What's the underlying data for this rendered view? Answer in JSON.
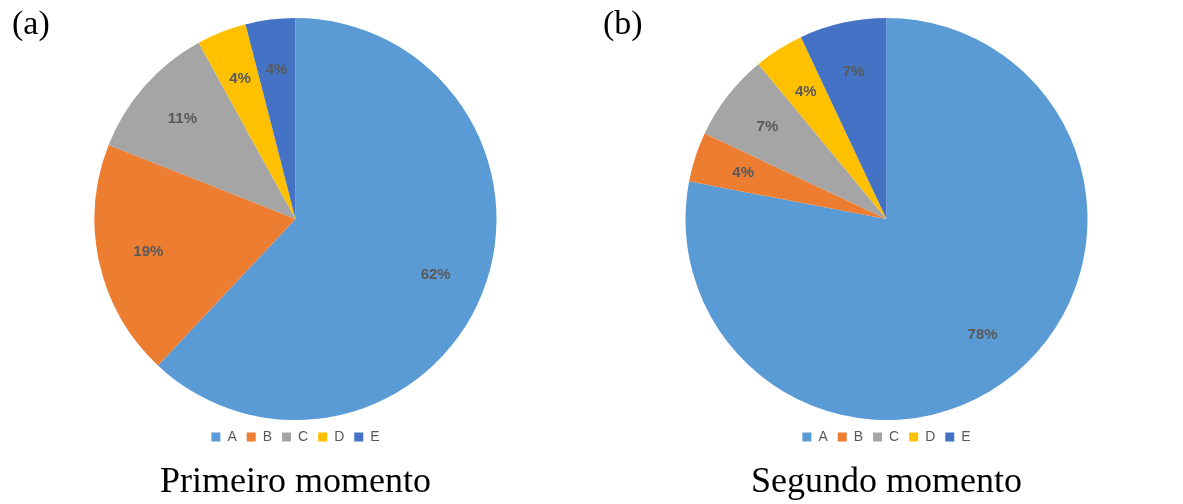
{
  "chart_data": [
    {
      "type": "pie",
      "title": "(a)",
      "annotations": [
        "Primeiro momento"
      ],
      "categories": [
        "A",
        "B",
        "C",
        "D",
        "E"
      ],
      "values": [
        62,
        19,
        11,
        4,
        4
      ],
      "value_labels": [
        "62%",
        "19%",
        "11%",
        "4%",
        "4%"
      ],
      "colors": [
        "#5b9bd5",
        "#ed7d31",
        "#a5a5a5",
        "#ffc000",
        "#4472c4"
      ],
      "legend": "bottom"
    },
    {
      "type": "pie",
      "title": "(b)",
      "annotations": [
        "Segundo momento"
      ],
      "categories": [
        "A",
        "B",
        "C",
        "D",
        "E"
      ],
      "values": [
        78,
        4,
        7,
        4,
        7
      ],
      "value_labels": [
        "78%",
        "4%",
        "7%",
        "4%",
        "7%"
      ],
      "colors": [
        "#5b9bd5",
        "#ed7d31",
        "#a5a5a5",
        "#ffc000",
        "#4472c4"
      ],
      "legend": "bottom"
    }
  ]
}
